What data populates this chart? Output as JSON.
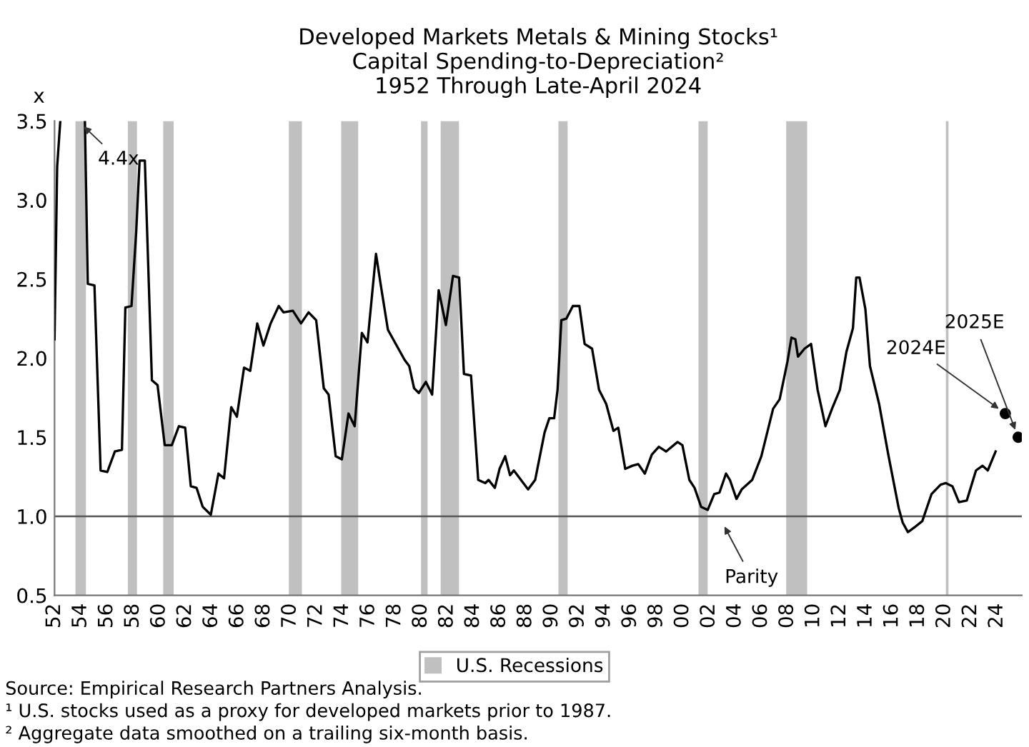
{
  "chart_data": {
    "type": "line",
    "title": "Developed Markets Metals & Mining Stocks¹\nCapital Spending-to-Depreciation²\n1952 Through Late-April 2024",
    "ylabel": "x",
    "xlim": [
      1952,
      2025.9
    ],
    "ylim": [
      0.5,
      3.5
    ],
    "xticks": [
      {
        "value": 1952,
        "label": "52"
      },
      {
        "value": 1954,
        "label": "54"
      },
      {
        "value": 1956,
        "label": "56"
      },
      {
        "value": 1958,
        "label": "58"
      },
      {
        "value": 1960,
        "label": "60"
      },
      {
        "value": 1962,
        "label": "62"
      },
      {
        "value": 1964,
        "label": "64"
      },
      {
        "value": 1966,
        "label": "66"
      },
      {
        "value": 1968,
        "label": "68"
      },
      {
        "value": 1970,
        "label": "70"
      },
      {
        "value": 1972,
        "label": "72"
      },
      {
        "value": 1974,
        "label": "74"
      },
      {
        "value": 1976,
        "label": "76"
      },
      {
        "value": 1978,
        "label": "78"
      },
      {
        "value": 1980,
        "label": "80"
      },
      {
        "value": 1982,
        "label": "82"
      },
      {
        "value": 1984,
        "label": "84"
      },
      {
        "value": 1986,
        "label": "86"
      },
      {
        "value": 1988,
        "label": "88"
      },
      {
        "value": 1990,
        "label": "90"
      },
      {
        "value": 1992,
        "label": "92"
      },
      {
        "value": 1994,
        "label": "94"
      },
      {
        "value": 1996,
        "label": "96"
      },
      {
        "value": 1998,
        "label": "98"
      },
      {
        "value": 2000,
        "label": "00"
      },
      {
        "value": 2002,
        "label": "02"
      },
      {
        "value": 2004,
        "label": "04"
      },
      {
        "value": 2006,
        "label": "06"
      },
      {
        "value": 2008,
        "label": "08"
      },
      {
        "value": 2010,
        "label": "10"
      },
      {
        "value": 2012,
        "label": "12"
      },
      {
        "value": 2014,
        "label": "14"
      },
      {
        "value": 2016,
        "label": "16"
      },
      {
        "value": 2018,
        "label": "18"
      },
      {
        "value": 2020,
        "label": "20"
      },
      {
        "value": 2022,
        "label": "22"
      },
      {
        "value": 2024,
        "label": "24"
      }
    ],
    "yticks": [
      {
        "value": 0.5,
        "label": "0.5"
      },
      {
        "value": 1.0,
        "label": "1.0"
      },
      {
        "value": 1.5,
        "label": "1.5"
      },
      {
        "value": 2.0,
        "label": "2.0"
      },
      {
        "value": 2.5,
        "label": "2.5"
      },
      {
        "value": 3.0,
        "label": "3.0"
      },
      {
        "value": 3.5,
        "label": "3.5"
      }
    ],
    "grid": false,
    "legend": "bottom",
    "series": [
      {
        "color": "#000000",
        "x": [
          1952.0,
          1952.2,
          1952.44,
          1952.5,
          1954.32,
          1954.54,
          1955.05,
          1955.52,
          1956.03,
          1956.61,
          1957.15,
          1957.41,
          1957.88,
          1958.24,
          1958.5,
          1958.9,
          1959.44,
          1959.87,
          1960.42,
          1960.96,
          1961.5,
          1961.98,
          1962.41,
          1962.85,
          1963.32,
          1963.94,
          1964.52,
          1964.95,
          1965.5,
          1965.93,
          1966.48,
          1966.95,
          1967.49,
          1967.96,
          1968.51,
          1969.13,
          1969.49,
          1970.21,
          1970.83,
          1971.41,
          1971.99,
          1972.57,
          1972.94,
          1973.48,
          1973.95,
          1974.46,
          1974.93,
          1975.48,
          1975.91,
          1976.56,
          1976.93,
          1977.47,
          1978.74,
          1979.1,
          1979.47,
          1979.83,
          1980.37,
          1980.85,
          1981.35,
          1981.9,
          1982.44,
          1982.91,
          1983.28,
          1983.82,
          1984.37,
          1984.91,
          1985.16,
          1985.64,
          1986.0,
          1986.43,
          1986.8,
          1987.09,
          1988.18,
          1988.72,
          1989.44,
          1989.8,
          1990.17,
          1990.43,
          1990.72,
          1991.1,
          1991.6,
          1992.1,
          1992.5,
          1993.07,
          1993.6,
          1994.15,
          1994.7,
          1995.07,
          1995.6,
          1996.15,
          1996.6,
          1997.1,
          1997.63,
          1998.17,
          1998.72,
          1999.6,
          1999.97,
          2000.5,
          2000.9,
          2001.4,
          2001.9,
          2002.4,
          2002.8,
          2003.3,
          2003.6,
          2004.1,
          2004.5,
          2005.3,
          2006.0,
          2006.9,
          2007.4,
          2008.0,
          2008.3,
          2008.6,
          2008.8,
          2009.3,
          2009.8,
          2010.3,
          2010.9,
          2011.4,
          2012.0,
          2012.5,
          2013.0,
          2013.25,
          2013.5,
          2013.95,
          2014.3,
          2015.0,
          2015.7,
          2016.5,
          2016.8,
          2017.2,
          2017.7,
          2018.3,
          2019.0,
          2019.7,
          2020.1,
          2020.6,
          2021.1,
          2021.7,
          2022.4,
          2022.9,
          2023.3,
          2023.9
        ],
        "values": [
          2.12,
          3.21,
          3.5,
          null,
          3.5,
          2.47,
          2.46,
          1.29,
          1.28,
          1.41,
          1.42,
          2.32,
          2.33,
          2.8,
          3.25,
          3.25,
          1.86,
          1.83,
          1.45,
          1.45,
          1.57,
          1.56,
          1.19,
          1.18,
          1.06,
          1.01,
          1.27,
          1.24,
          1.69,
          1.63,
          1.94,
          1.92,
          2.22,
          2.08,
          2.22,
          2.33,
          2.29,
          2.3,
          2.22,
          2.29,
          2.24,
          1.81,
          1.77,
          1.38,
          1.36,
          1.65,
          1.57,
          2.16,
          2.1,
          2.66,
          2.46,
          2.18,
          1.99,
          1.95,
          1.81,
          1.78,
          1.85,
          1.77,
          2.43,
          2.21,
          2.52,
          2.51,
          1.9,
          1.89,
          1.23,
          1.21,
          1.23,
          1.18,
          1.3,
          1.38,
          1.26,
          1.29,
          1.17,
          1.23,
          1.53,
          1.62,
          1.62,
          1.8,
          2.24,
          2.25,
          2.33,
          2.33,
          2.09,
          2.06,
          1.8,
          1.71,
          1.54,
          1.56,
          1.3,
          1.32,
          1.33,
          1.27,
          1.39,
          1.44,
          1.41,
          1.47,
          1.45,
          1.23,
          1.18,
          1.06,
          1.04,
          1.14,
          1.15,
          1.27,
          1.23,
          1.11,
          1.17,
          1.23,
          1.38,
          1.68,
          1.74,
          1.98,
          2.13,
          2.12,
          2.01,
          2.06,
          2.09,
          1.8,
          1.57,
          1.68,
          1.8,
          2.04,
          2.19,
          2.51,
          2.51,
          2.31,
          1.95,
          1.71,
          1.39,
          1.05,
          0.96,
          0.9,
          0.93,
          0.97,
          1.14,
          1.2,
          1.21,
          1.19,
          1.09,
          1.1,
          1.29,
          1.32,
          1.29,
          1.41
        ]
      },
      {
        "type": "scatter",
        "color": "#000000",
        "marker": "circle",
        "x": [
          2024.64,
          2025.62
        ],
        "values": [
          1.65,
          1.5
        ]
      }
    ],
    "ref_lines": [
      {
        "axis": "y",
        "value": 1.0,
        "color": "#555555"
      }
    ],
    "bands": [
      {
        "axis": "x",
        "from": 1953.6,
        "to": 1954.4,
        "label": "U.S. Recessions",
        "color": "#c0c0c0"
      },
      {
        "axis": "x",
        "from": 1957.6,
        "to": 1958.3,
        "color": "#c0c0c0"
      },
      {
        "axis": "x",
        "from": 1960.3,
        "to": 1961.1,
        "color": "#c0c0c0"
      },
      {
        "axis": "x",
        "from": 1969.9,
        "to": 1970.9,
        "color": "#c0c0c0"
      },
      {
        "axis": "x",
        "from": 1973.9,
        "to": 1975.2,
        "color": "#c0c0c0"
      },
      {
        "axis": "x",
        "from": 1980.0,
        "to": 1980.5,
        "color": "#c0c0c0"
      },
      {
        "axis": "x",
        "from": 1981.5,
        "to": 1982.9,
        "color": "#c0c0c0"
      },
      {
        "axis": "x",
        "from": 1990.5,
        "to": 1991.2,
        "color": "#c0c0c0"
      },
      {
        "axis": "x",
        "from": 2001.2,
        "to": 2001.9,
        "color": "#c0c0c0"
      },
      {
        "axis": "x",
        "from": 2007.9,
        "to": 2009.5,
        "color": "#c0c0c0"
      },
      {
        "axis": "x",
        "from": 2020.1,
        "to": 2020.3,
        "color": "#c0c0c0"
      }
    ],
    "annotations": [
      {
        "text": "4.4x",
        "x": 1953.8,
        "y": 3.5
      },
      {
        "text": "Parity",
        "x": 2002.9,
        "y": 0.98
      },
      {
        "text": "2024E",
        "x": 2024.64,
        "y": 1.65
      },
      {
        "text": "2025E",
        "x": 2025.62,
        "y": 1.5
      },
      "Source: Empirical Research Partners Analysis.",
      "¹ U.S. stocks used as a proxy for developed markets prior to 1987.",
      "² Aggregate data smoothed on a trailing six-month basis."
    ]
  }
}
